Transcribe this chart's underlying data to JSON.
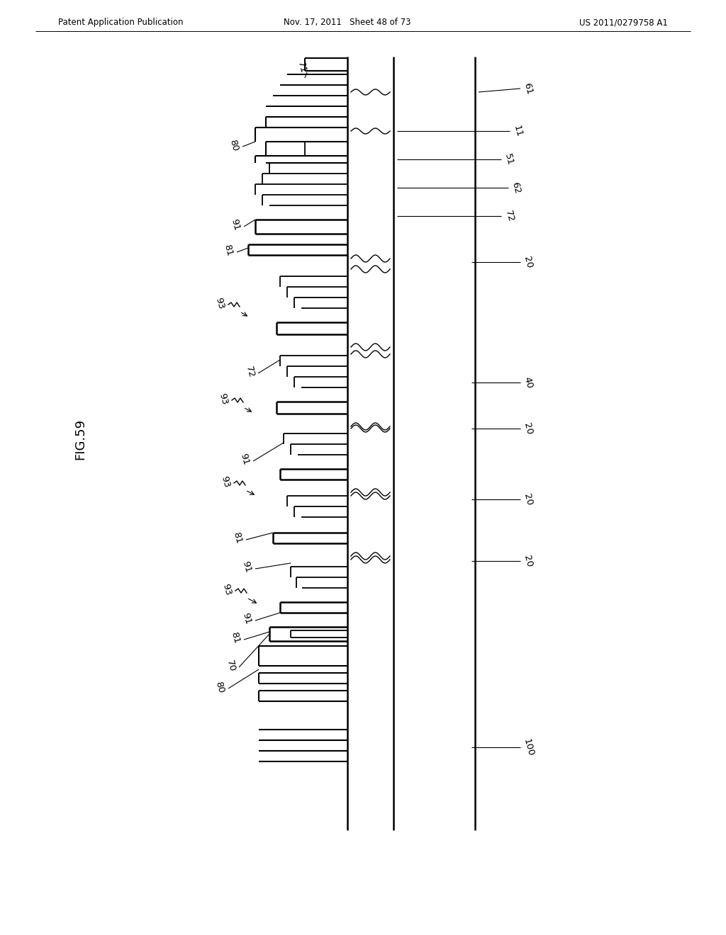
{
  "header_left": "Patent Application Publication",
  "header_mid": "Nov. 17, 2011   Sheet 48 of 73",
  "header_right": "US 2011/0279758 A1",
  "fig_label": "FIG.59",
  "bg_color": "#ffffff"
}
